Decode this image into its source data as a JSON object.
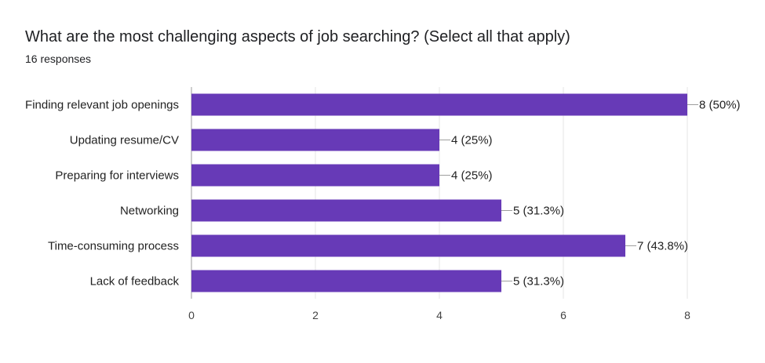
{
  "question": {
    "title": "What are the most challenging aspects of job searching? (Select all that apply)",
    "responses": "16 responses"
  },
  "colors": {
    "bar": "#673ab7",
    "grid": "#e6e6e6",
    "axis": "#9e9e9e",
    "leader": "#9e9e9e"
  },
  "chart_data": {
    "type": "bar",
    "orientation": "horizontal",
    "categories": [
      "Finding relevant job openings",
      "Updating resume/CV",
      "Preparing for interviews",
      "Networking",
      "Time-consuming process",
      "Lack of feedback"
    ],
    "values": [
      8,
      4,
      4,
      5,
      7,
      5
    ],
    "data_labels": [
      "8 (50%)",
      "4 (25%)",
      "4 (25%)",
      "5 (31.3%)",
      "7 (43.8%)",
      "5 (31.3%)"
    ],
    "xlim": [
      0,
      8
    ],
    "xticks": [
      0,
      2,
      4,
      6,
      8
    ],
    "grid": true
  }
}
